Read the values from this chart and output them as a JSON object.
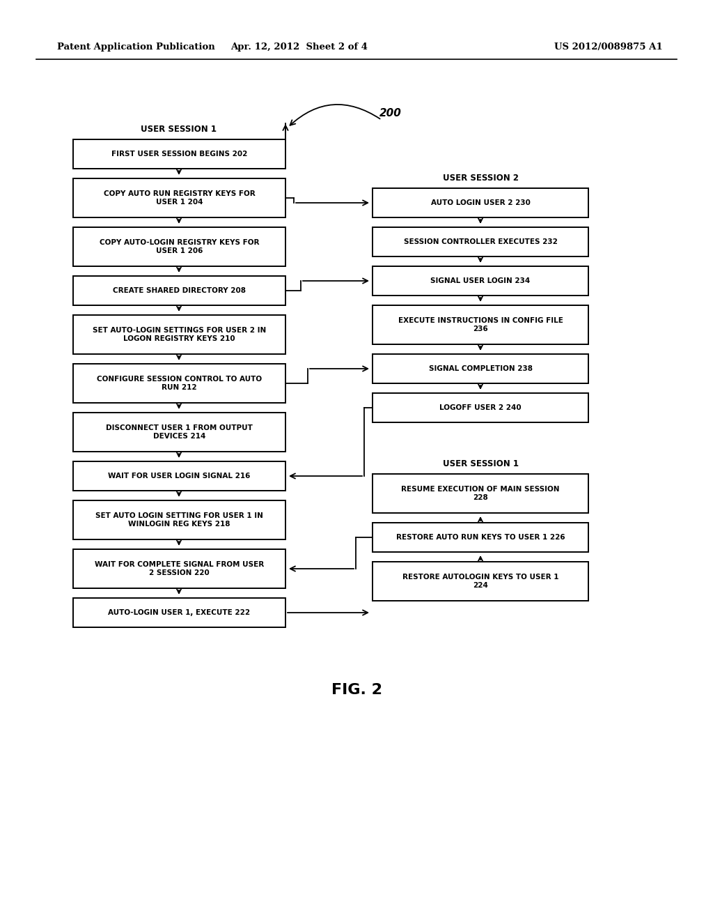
{
  "header_left": "Patent Application Publication",
  "header_mid": "Apr. 12, 2012  Sheet 2 of 4",
  "header_right": "US 2012/0089875 A1",
  "fig_label": "FIG. 2",
  "label_200": "200",
  "session1_label_top": "USER SESSION 1",
  "session2_label": "USER SESSION 2",
  "session1_label_bot": "USER SESSION 1",
  "left_texts": [
    "FIRST USER SESSION BEGINS 202",
    "COPY AUTO RUN REGISTRY KEYS FOR\nUSER 1 204",
    "COPY AUTO-LOGIN REGISTRY KEYS FOR\nUSER 1 206",
    "CREATE SHARED DIRECTORY 208",
    "SET AUTO-LOGIN SETTINGS FOR USER 2 IN\nLOGON REGISTRY KEYS 210",
    "CONFIGURE SESSION CONTROL TO AUTO\nRUN 212",
    "DISCONNECT USER 1 FROM OUTPUT\nDEVICES 214",
    "WAIT FOR USER LOGIN SIGNAL 216",
    "SET AUTO LOGIN SETTING FOR USER 1 IN\nWINLOGIN REG KEYS 218",
    "WAIT FOR COMPLETE SIGNAL FROM USER\n2 SESSION 220",
    "AUTO-LOGIN USER 1, EXECUTE 222"
  ],
  "right_top_texts": [
    "AUTO LOGIN USER 2 230",
    "SESSION CONTROLLER EXECUTES 232",
    "SIGNAL USER LOGIN 234",
    "EXECUTE INSTRUCTIONS IN CONFIG FILE\n236",
    "SIGNAL COMPLETION 238",
    "LOGOFF USER 2 240"
  ],
  "right_bot_texts": [
    "RESUME EXECUTION OF MAIN SESSION\n228",
    "RESTORE AUTO RUN KEYS TO USER 1 226",
    "RESTORE AUTOLOGIN KEYS TO USER 1\n224"
  ]
}
